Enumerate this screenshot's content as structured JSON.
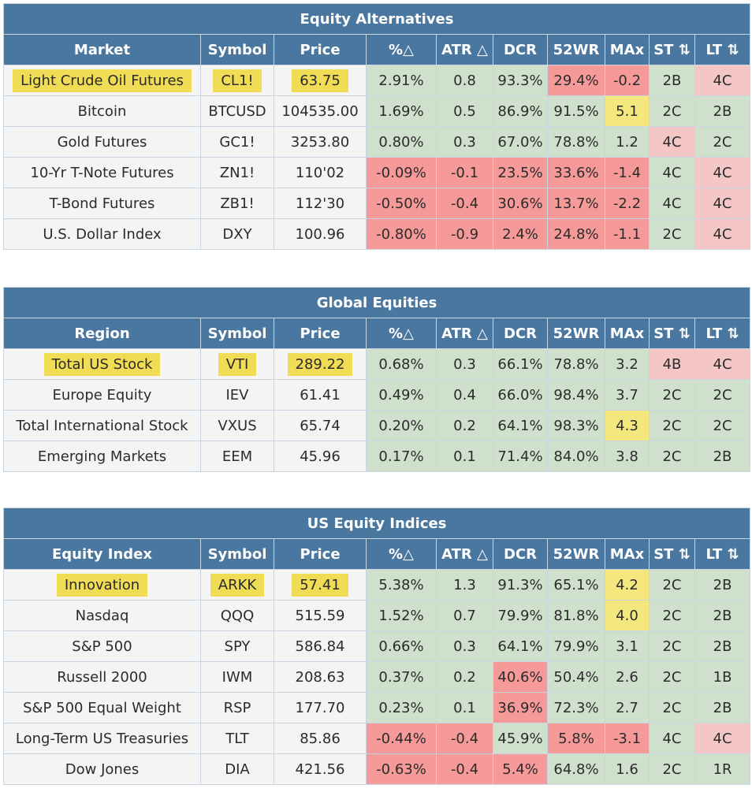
{
  "sections": [
    {
      "title": "Equity Alternatives",
      "first_col": "Market",
      "rows": [
        {
          "name": "Light Crude Oil Futures",
          "symbol": "CL1!",
          "price": "63.75",
          "chg": "2.91%",
          "atr": "0.8",
          "dcr": "93.3%",
          "wr": "29.4%",
          "max": "-0.2",
          "st": "2B",
          "lt": "4C",
          "highlight": true,
          "colors": [
            "g",
            "g",
            "g",
            "r",
            "r",
            "g",
            "p"
          ]
        },
        {
          "name": "Bitcoin",
          "symbol": "BTCUSD",
          "price": "104535.00",
          "chg": "1.69%",
          "atr": "0.5",
          "dcr": "86.9%",
          "wr": "91.5%",
          "max": "5.1",
          "st": "2C",
          "lt": "2B",
          "highlight": false,
          "colors": [
            "g",
            "g",
            "g",
            "g",
            "y",
            "g",
            "g"
          ]
        },
        {
          "name": "Gold Futures",
          "symbol": "GC1!",
          "price": "3253.80",
          "chg": "0.80%",
          "atr": "0.3",
          "dcr": "67.0%",
          "wr": "78.8%",
          "max": "1.2",
          "st": "4C",
          "lt": "2C",
          "highlight": false,
          "colors": [
            "g",
            "g",
            "g",
            "g",
            "g",
            "p",
            "g"
          ]
        },
        {
          "name": "10-Yr T-Note Futures",
          "symbol": "ZN1!",
          "price": "110'02",
          "chg": "-0.09%",
          "atr": "-0.1",
          "dcr": "23.5%",
          "wr": "33.6%",
          "max": "-1.4",
          "st": "4C",
          "lt": "4C",
          "highlight": false,
          "colors": [
            "r",
            "r",
            "r",
            "r",
            "r",
            "g",
            "p"
          ]
        },
        {
          "name": "T-Bond Futures",
          "symbol": "ZB1!",
          "price": "112'30",
          "chg": "-0.50%",
          "atr": "-0.4",
          "dcr": "30.6%",
          "wr": "13.7%",
          "max": "-2.2",
          "st": "4C",
          "lt": "4C",
          "highlight": false,
          "colors": [
            "r",
            "r",
            "r",
            "r",
            "r",
            "g",
            "p"
          ]
        },
        {
          "name": "U.S. Dollar Index",
          "symbol": "DXY",
          "price": "100.96",
          "chg": "-0.80%",
          "atr": "-0.9",
          "dcr": "2.4%",
          "wr": "24.8%",
          "max": "-1.1",
          "st": "2C",
          "lt": "4C",
          "highlight": false,
          "colors": [
            "r",
            "r",
            "r",
            "r",
            "r",
            "g",
            "p"
          ]
        }
      ]
    },
    {
      "title": "Global Equities",
      "first_col": "Region",
      "rows": [
        {
          "name": "Total US Stock",
          "symbol": "VTI",
          "price": "289.22",
          "chg": "0.68%",
          "atr": "0.3",
          "dcr": "66.1%",
          "wr": "78.8%",
          "max": "3.2",
          "st": "4B",
          "lt": "4C",
          "highlight": true,
          "colors": [
            "g",
            "g",
            "g",
            "g",
            "g",
            "p",
            "p"
          ]
        },
        {
          "name": "Europe Equity",
          "symbol": "IEV",
          "price": "61.41",
          "chg": "0.49%",
          "atr": "0.4",
          "dcr": "66.0%",
          "wr": "98.4%",
          "max": "3.7",
          "st": "2C",
          "lt": "2C",
          "highlight": false,
          "colors": [
            "g",
            "g",
            "g",
            "g",
            "g",
            "g",
            "g"
          ]
        },
        {
          "name": "Total International Stock",
          "symbol": "VXUS",
          "price": "65.74",
          "chg": "0.20%",
          "atr": "0.2",
          "dcr": "64.1%",
          "wr": "98.3%",
          "max": "4.3",
          "st": "2C",
          "lt": "2C",
          "highlight": false,
          "colors": [
            "g",
            "g",
            "g",
            "g",
            "y",
            "g",
            "g"
          ]
        },
        {
          "name": "Emerging Markets",
          "symbol": "EEM",
          "price": "45.96",
          "chg": "0.17%",
          "atr": "0.1",
          "dcr": "71.4%",
          "wr": "84.0%",
          "max": "3.8",
          "st": "2C",
          "lt": "2B",
          "highlight": false,
          "colors": [
            "g",
            "g",
            "g",
            "g",
            "g",
            "g",
            "g"
          ]
        }
      ]
    },
    {
      "title": "US Equity Indices",
      "first_col": "Equity Index",
      "rows": [
        {
          "name": "Innovation",
          "symbol": "ARKK",
          "price": "57.41",
          "chg": "5.38%",
          "atr": "1.3",
          "dcr": "91.3%",
          "wr": "65.1%",
          "max": "4.2",
          "st": "2C",
          "lt": "2B",
          "highlight": true,
          "colors": [
            "g",
            "g",
            "g",
            "g",
            "y",
            "g",
            "g"
          ]
        },
        {
          "name": "Nasdaq",
          "symbol": "QQQ",
          "price": "515.59",
          "chg": "1.52%",
          "atr": "0.7",
          "dcr": "79.9%",
          "wr": "81.8%",
          "max": "4.0",
          "st": "2C",
          "lt": "2B",
          "highlight": false,
          "colors": [
            "g",
            "g",
            "g",
            "g",
            "y",
            "g",
            "g"
          ]
        },
        {
          "name": "S&P 500",
          "symbol": "SPY",
          "price": "586.84",
          "chg": "0.66%",
          "atr": "0.3",
          "dcr": "64.1%",
          "wr": "79.9%",
          "max": "3.1",
          "st": "2C",
          "lt": "2B",
          "highlight": false,
          "colors": [
            "g",
            "g",
            "g",
            "g",
            "g",
            "g",
            "g"
          ]
        },
        {
          "name": "Russell 2000",
          "symbol": "IWM",
          "price": "208.63",
          "chg": "0.37%",
          "atr": "0.2",
          "dcr": "40.6%",
          "wr": "50.4%",
          "max": "2.6",
          "st": "2C",
          "lt": "1B",
          "highlight": false,
          "colors": [
            "g",
            "g",
            "r",
            "g",
            "g",
            "g",
            "g"
          ]
        },
        {
          "name": "S&P 500 Equal Weight",
          "symbol": "RSP",
          "price": "177.70",
          "chg": "0.23%",
          "atr": "0.1",
          "dcr": "36.9%",
          "wr": "72.3%",
          "max": "2.7",
          "st": "2C",
          "lt": "2B",
          "highlight": false,
          "colors": [
            "g",
            "g",
            "r",
            "g",
            "g",
            "g",
            "g"
          ]
        },
        {
          "name": "Long-Term US Treasuries",
          "symbol": "TLT",
          "price": "85.86",
          "chg": "-0.44%",
          "atr": "-0.4",
          "dcr": "45.9%",
          "wr": "5.8%",
          "max": "-3.1",
          "st": "4C",
          "lt": "4C",
          "highlight": false,
          "colors": [
            "r",
            "r",
            "g",
            "r",
            "r",
            "g",
            "p"
          ]
        },
        {
          "name": "Dow Jones",
          "symbol": "DIA",
          "price": "421.56",
          "chg": "-0.63%",
          "atr": "-0.4",
          "dcr": "5.4%",
          "wr": "64.8%",
          "max": "1.6",
          "st": "2C",
          "lt": "1R",
          "highlight": false,
          "colors": [
            "r",
            "r",
            "r",
            "g",
            "g",
            "g",
            "g"
          ]
        }
      ]
    }
  ],
  "columns": {
    "symbol": "Symbol",
    "price": "Price",
    "chg": "%△",
    "atr": "ATR △",
    "dcr": "DCR",
    "wr": "52WR",
    "max": "MAx",
    "st": "ST ⇅",
    "lt": "LT ⇅"
  },
  "palette": {
    "header_blue": "#4a77a0",
    "green": "#cfe0cc",
    "red": "#f59a98",
    "pink": "#f4c6c6",
    "yellow": "#f3e77e",
    "highlight_yellow": "#f0dc55"
  }
}
